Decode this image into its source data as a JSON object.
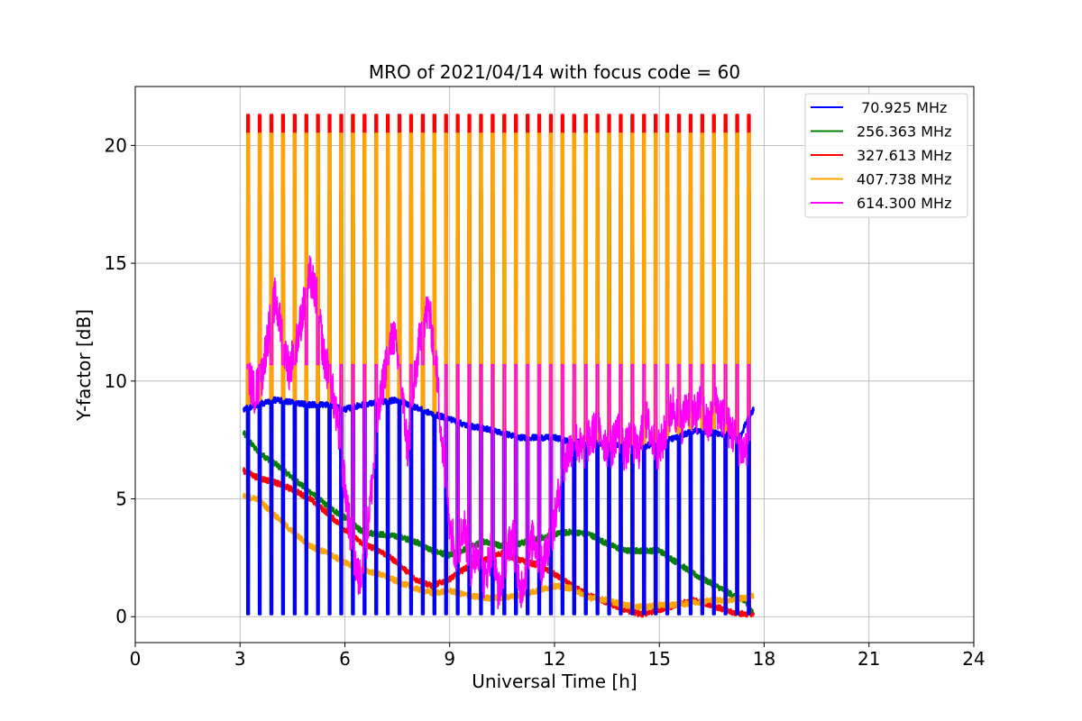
{
  "chart_data": {
    "type": "line",
    "title": "MRO of 2021/04/14 with focus code = 60",
    "xlabel": "Universal Time [h]",
    "ylabel": "Y-factor [dB]",
    "xlim": [
      0,
      24
    ],
    "ylim": [
      -1.1,
      22.5
    ],
    "xticks": [
      0,
      3,
      6,
      9,
      12,
      15,
      18,
      21,
      24
    ],
    "yticks": [
      0,
      5,
      10,
      15,
      20
    ],
    "grid": true,
    "legend_position": "top-right",
    "calibration_pulses": {
      "start": 3.2,
      "end": 17.6,
      "period": 0.3333,
      "width": 0.06
    },
    "series": [
      {
        "name": " 70.925 MHz",
        "color": "#0000ff",
        "baseline": {
          "x": [
            3.1,
            3.5,
            4.0,
            4.5,
            5.0,
            5.5,
            6.0,
            6.5,
            7.0,
            7.5,
            8.0,
            8.5,
            9.0,
            9.5,
            10.0,
            10.5,
            11.0,
            11.5,
            12.0,
            12.5,
            13.0,
            13.5,
            14.0,
            14.5,
            15.0,
            15.5,
            16.0,
            16.5,
            17.0,
            17.3,
            17.5,
            17.7
          ],
          "y": [
            8.8,
            9.0,
            9.2,
            9.1,
            9.0,
            9.0,
            8.8,
            9.0,
            9.1,
            9.2,
            8.9,
            8.6,
            8.4,
            8.1,
            8.0,
            7.8,
            7.6,
            7.6,
            7.6,
            7.4,
            7.4,
            7.3,
            7.3,
            7.2,
            7.4,
            7.6,
            7.9,
            7.8,
            7.7,
            7.6,
            8.3,
            8.8
          ]
        },
        "pulse_high": null,
        "pulse_low": 0.1
      },
      {
        "name": "256.363 MHz",
        "color": "#008000",
        "baseline": {
          "x": [
            3.1,
            3.5,
            4.0,
            4.5,
            5.0,
            5.5,
            6.0,
            6.5,
            7.0,
            7.5,
            8.0,
            8.5,
            9.0,
            9.5,
            10.0,
            10.5,
            11.0,
            11.5,
            12.0,
            12.5,
            13.0,
            13.5,
            14.0,
            14.5,
            15.0,
            15.5,
            16.0,
            16.5,
            17.0,
            17.5,
            17.7
          ],
          "y": [
            7.8,
            7.0,
            6.5,
            5.9,
            5.3,
            4.7,
            4.2,
            3.6,
            3.5,
            3.4,
            3.2,
            2.8,
            2.6,
            2.9,
            3.2,
            3.0,
            3.1,
            3.3,
            3.5,
            3.6,
            3.5,
            3.1,
            2.8,
            2.8,
            2.8,
            2.3,
            1.8,
            1.4,
            1.0,
            0.6,
            0.1
          ]
        },
        "pulse_high": 18.0,
        "pulse_low": null
      },
      {
        "name": "327.613 MHz",
        "color": "#ff0000",
        "baseline": {
          "x": [
            3.1,
            3.5,
            4.0,
            4.5,
            5.0,
            5.5,
            6.0,
            6.5,
            7.0,
            7.5,
            8.0,
            8.5,
            9.0,
            9.5,
            10.0,
            10.5,
            11.0,
            11.5,
            12.0,
            12.5,
            13.0,
            13.5,
            14.0,
            14.5,
            15.0,
            15.5,
            16.0,
            16.5,
            17.0,
            17.5,
            17.7
          ],
          "y": [
            6.2,
            5.9,
            5.7,
            5.4,
            5.0,
            4.4,
            3.7,
            3.1,
            2.8,
            2.3,
            1.6,
            1.3,
            1.6,
            2.1,
            2.4,
            2.7,
            2.4,
            2.2,
            1.8,
            1.3,
            0.9,
            0.6,
            0.3,
            0.1,
            0.3,
            0.5,
            0.7,
            0.5,
            0.2,
            0.1,
            0.05
          ]
        },
        "pulse_high": 21.3,
        "pulse_low": null
      },
      {
        "name": "407.738 MHz",
        "color": "#ffa500",
        "baseline": {
          "x": [
            3.1,
            3.5,
            4.0,
            4.5,
            5.0,
            5.5,
            6.0,
            6.5,
            7.0,
            7.5,
            8.0,
            8.5,
            9.0,
            9.5,
            10.0,
            10.5,
            11.0,
            11.5,
            12.0,
            12.5,
            13.0,
            13.5,
            14.0,
            14.5,
            15.0,
            15.5,
            16.0,
            16.5,
            17.0,
            17.5,
            17.7
          ],
          "y": [
            5.1,
            5.0,
            4.3,
            3.6,
            3.0,
            2.7,
            2.3,
            2.0,
            1.8,
            1.5,
            1.2,
            1.0,
            1.1,
            0.9,
            0.8,
            0.8,
            0.9,
            1.1,
            1.3,
            1.2,
            0.8,
            0.7,
            0.5,
            0.4,
            0.5,
            0.5,
            0.6,
            0.7,
            0.7,
            0.8,
            0.9
          ]
        },
        "pulse_high": 20.5,
        "pulse_low": null
      },
      {
        "name": "614.300 MHz",
        "color": "#ff00ff",
        "baseline": {
          "x": [
            3.2,
            3.4,
            3.6,
            3.8,
            4.0,
            4.2,
            4.4,
            4.6,
            4.8,
            5.0,
            5.2,
            5.4,
            5.6,
            5.8,
            6.0,
            6.2,
            6.4,
            6.6,
            6.8,
            7.0,
            7.2,
            7.4,
            7.6,
            7.8,
            8.0,
            8.2,
            8.4,
            8.6,
            8.8,
            9.0,
            9.2,
            9.4,
            9.6,
            9.8,
            10.0,
            10.2,
            10.4,
            10.6,
            10.8,
            11.0,
            11.2,
            11.4,
            11.6,
            11.8,
            12.0,
            12.2,
            12.4,
            12.6,
            12.8,
            13.0,
            13.2,
            13.4,
            13.6,
            13.8,
            14.0,
            14.2,
            14.4,
            14.6,
            14.8,
            15.0,
            15.2,
            15.4,
            15.6,
            15.8,
            16.0,
            16.2,
            16.4,
            16.6,
            16.8,
            17.0,
            17.2,
            17.4,
            17.6
          ],
          "y": [
            10.5,
            9.5,
            10.0,
            12.0,
            13.5,
            12.0,
            10.5,
            11.5,
            13.0,
            14.5,
            13.5,
            11.0,
            10.0,
            8.0,
            5.5,
            3.0,
            1.5,
            3.0,
            6.0,
            9.0,
            11.0,
            12.0,
            10.0,
            7.0,
            10.0,
            12.5,
            13.0,
            11.0,
            7.0,
            4.0,
            2.5,
            4.0,
            2.0,
            3.0,
            1.5,
            3.0,
            1.0,
            2.5,
            3.5,
            1.0,
            2.0,
            3.5,
            2.0,
            3.0,
            4.0,
            6.0,
            7.0,
            7.5,
            7.0,
            7.5,
            8.0,
            7.5,
            7.0,
            8.0,
            7.0,
            7.5,
            7.0,
            8.5,
            7.5,
            7.0,
            8.0,
            9.0,
            8.0,
            9.0,
            8.5,
            9.0,
            8.0,
            9.0,
            8.5,
            8.0,
            7.5,
            7.0,
            7.5
          ]
        },
        "pulse_high": 10.7,
        "pulse_low": null
      }
    ]
  }
}
